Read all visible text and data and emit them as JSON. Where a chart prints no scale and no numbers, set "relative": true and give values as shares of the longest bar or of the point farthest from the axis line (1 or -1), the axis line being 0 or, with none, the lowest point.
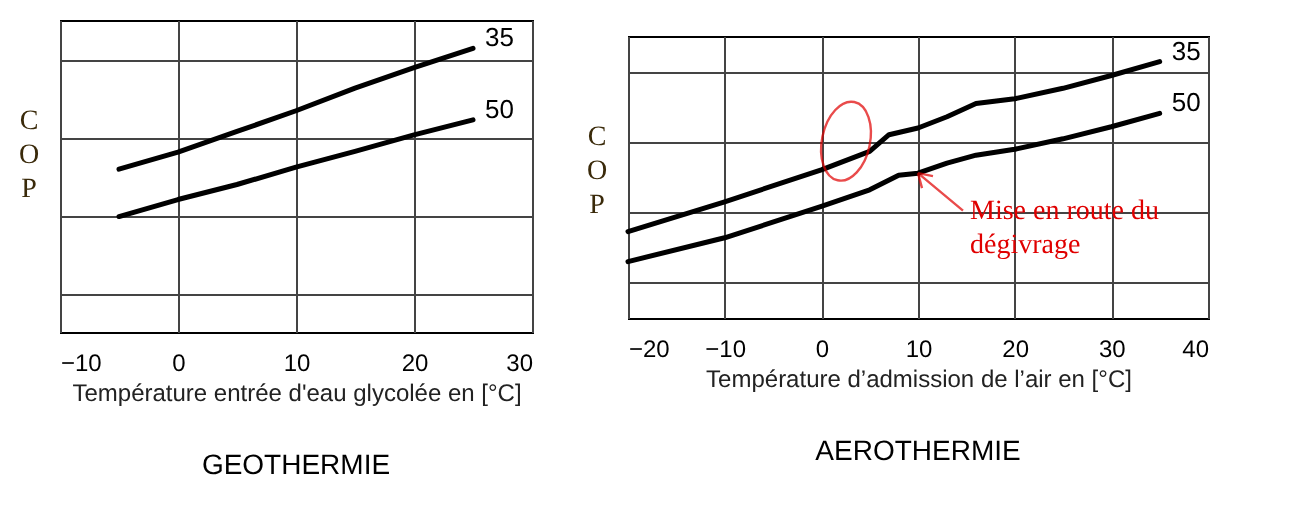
{
  "chart_data": [
    {
      "type": "line",
      "title": "GEOTHERMIE",
      "xlabel": "Température entrée d'eau glycolée en [°C]",
      "ylabel": "COP",
      "relative": true,
      "grid": true,
      "xlim": [
        -10,
        30
      ],
      "xticks": [
        -10,
        0,
        10,
        20,
        30
      ],
      "x": [
        -5,
        0,
        5,
        10,
        15,
        20,
        25
      ],
      "series": [
        {
          "name": "35",
          "color": "#000000",
          "values": [
            0.574,
            0.634,
            0.707,
            0.78,
            0.86,
            0.932,
            1
          ]
        },
        {
          "name": "50",
          "color": "#000000",
          "values": [
            0.407,
            0.467,
            0.52,
            0.581,
            0.637,
            0.695,
            0.748
          ]
        }
      ]
    },
    {
      "type": "line",
      "title": "AEROTHERMIE",
      "xlabel": "Température d’admission de l’air en [°C]",
      "ylabel": "COP",
      "relative": true,
      "grid": true,
      "xlim": [
        -20,
        40
      ],
      "xticks": [
        -20,
        -10,
        0,
        10,
        20,
        30,
        40
      ],
      "annotations": [
        {
          "text": "Mise en route du dégivrage",
          "x": 10,
          "y": 0.565
        }
      ],
      "series": [
        {
          "name": "35",
          "color": "#000000",
          "x": [
            -20,
            -10,
            0,
            5,
            7,
            10,
            13,
            16,
            20,
            25,
            30,
            35
          ],
          "values": [
            0.337,
            0.453,
            0.578,
            0.65,
            0.715,
            0.741,
            0.785,
            0.837,
            0.855,
            0.896,
            0.946,
            1
          ]
        },
        {
          "name": "50",
          "color": "#000000",
          "x": [
            -20,
            -10,
            0,
            5,
            8,
            10,
            13,
            16,
            20,
            25,
            30,
            35
          ],
          "values": [
            0.22,
            0.313,
            0.435,
            0.5,
            0.557,
            0.565,
            0.604,
            0.635,
            0.658,
            0.699,
            0.746,
            0.798
          ]
        }
      ]
    }
  ]
}
